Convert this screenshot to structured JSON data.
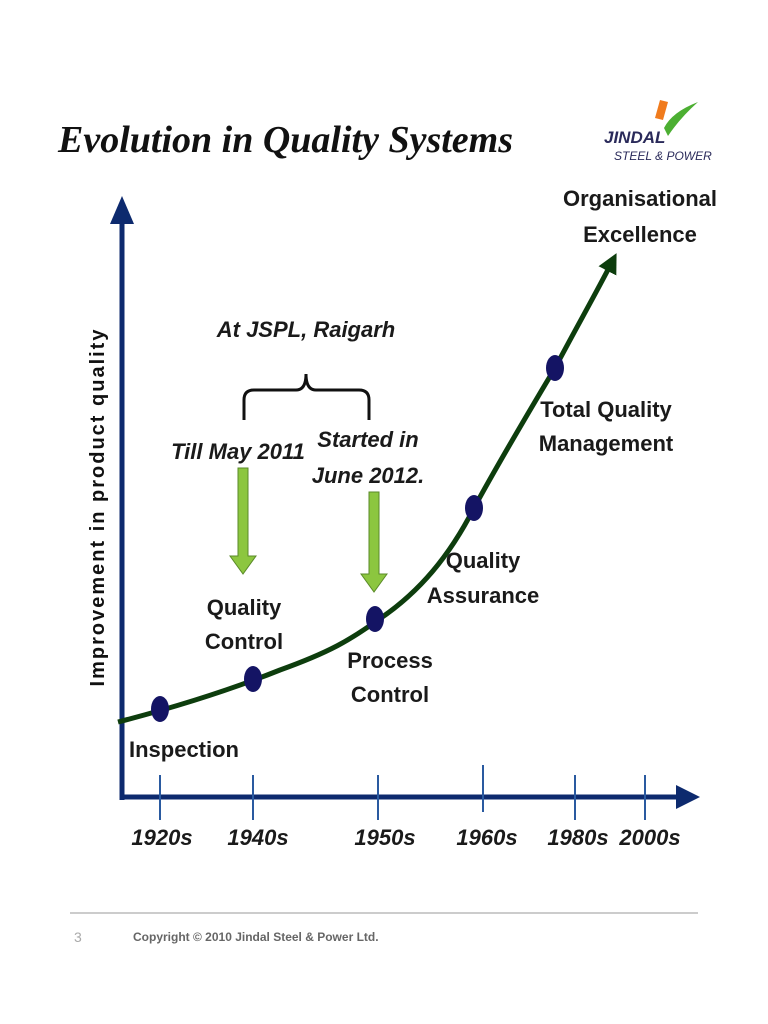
{
  "header": {
    "title": "Evolution in Quality Systems",
    "logo": {
      "name": "JINDAL",
      "subtitle": "STEEL & POWER"
    }
  },
  "diagram": {
    "y_axis_label": "Improvement in product quality",
    "stages": [
      {
        "lines": [
          "Inspection"
        ]
      },
      {
        "lines": [
          "Quality",
          "Control"
        ]
      },
      {
        "lines": [
          "Process",
          "Control"
        ]
      },
      {
        "lines": [
          "Quality",
          "Assurance"
        ]
      },
      {
        "lines": [
          "Total Quality",
          "Management"
        ]
      },
      {
        "lines": [
          "Organisational",
          "Excellence"
        ]
      }
    ],
    "decades": [
      "1920s",
      "1940s",
      "1950s",
      "1960s",
      "1980s",
      "2000s"
    ],
    "jspl": {
      "title": "At JSPL, Raigarh",
      "left_note": [
        "Till May 2011"
      ],
      "right_note": [
        "Started in",
        "June 2012."
      ]
    }
  },
  "footer": {
    "page": "3",
    "copyright": "Copyright © 2010 Jindal Steel & Power Ltd."
  }
}
